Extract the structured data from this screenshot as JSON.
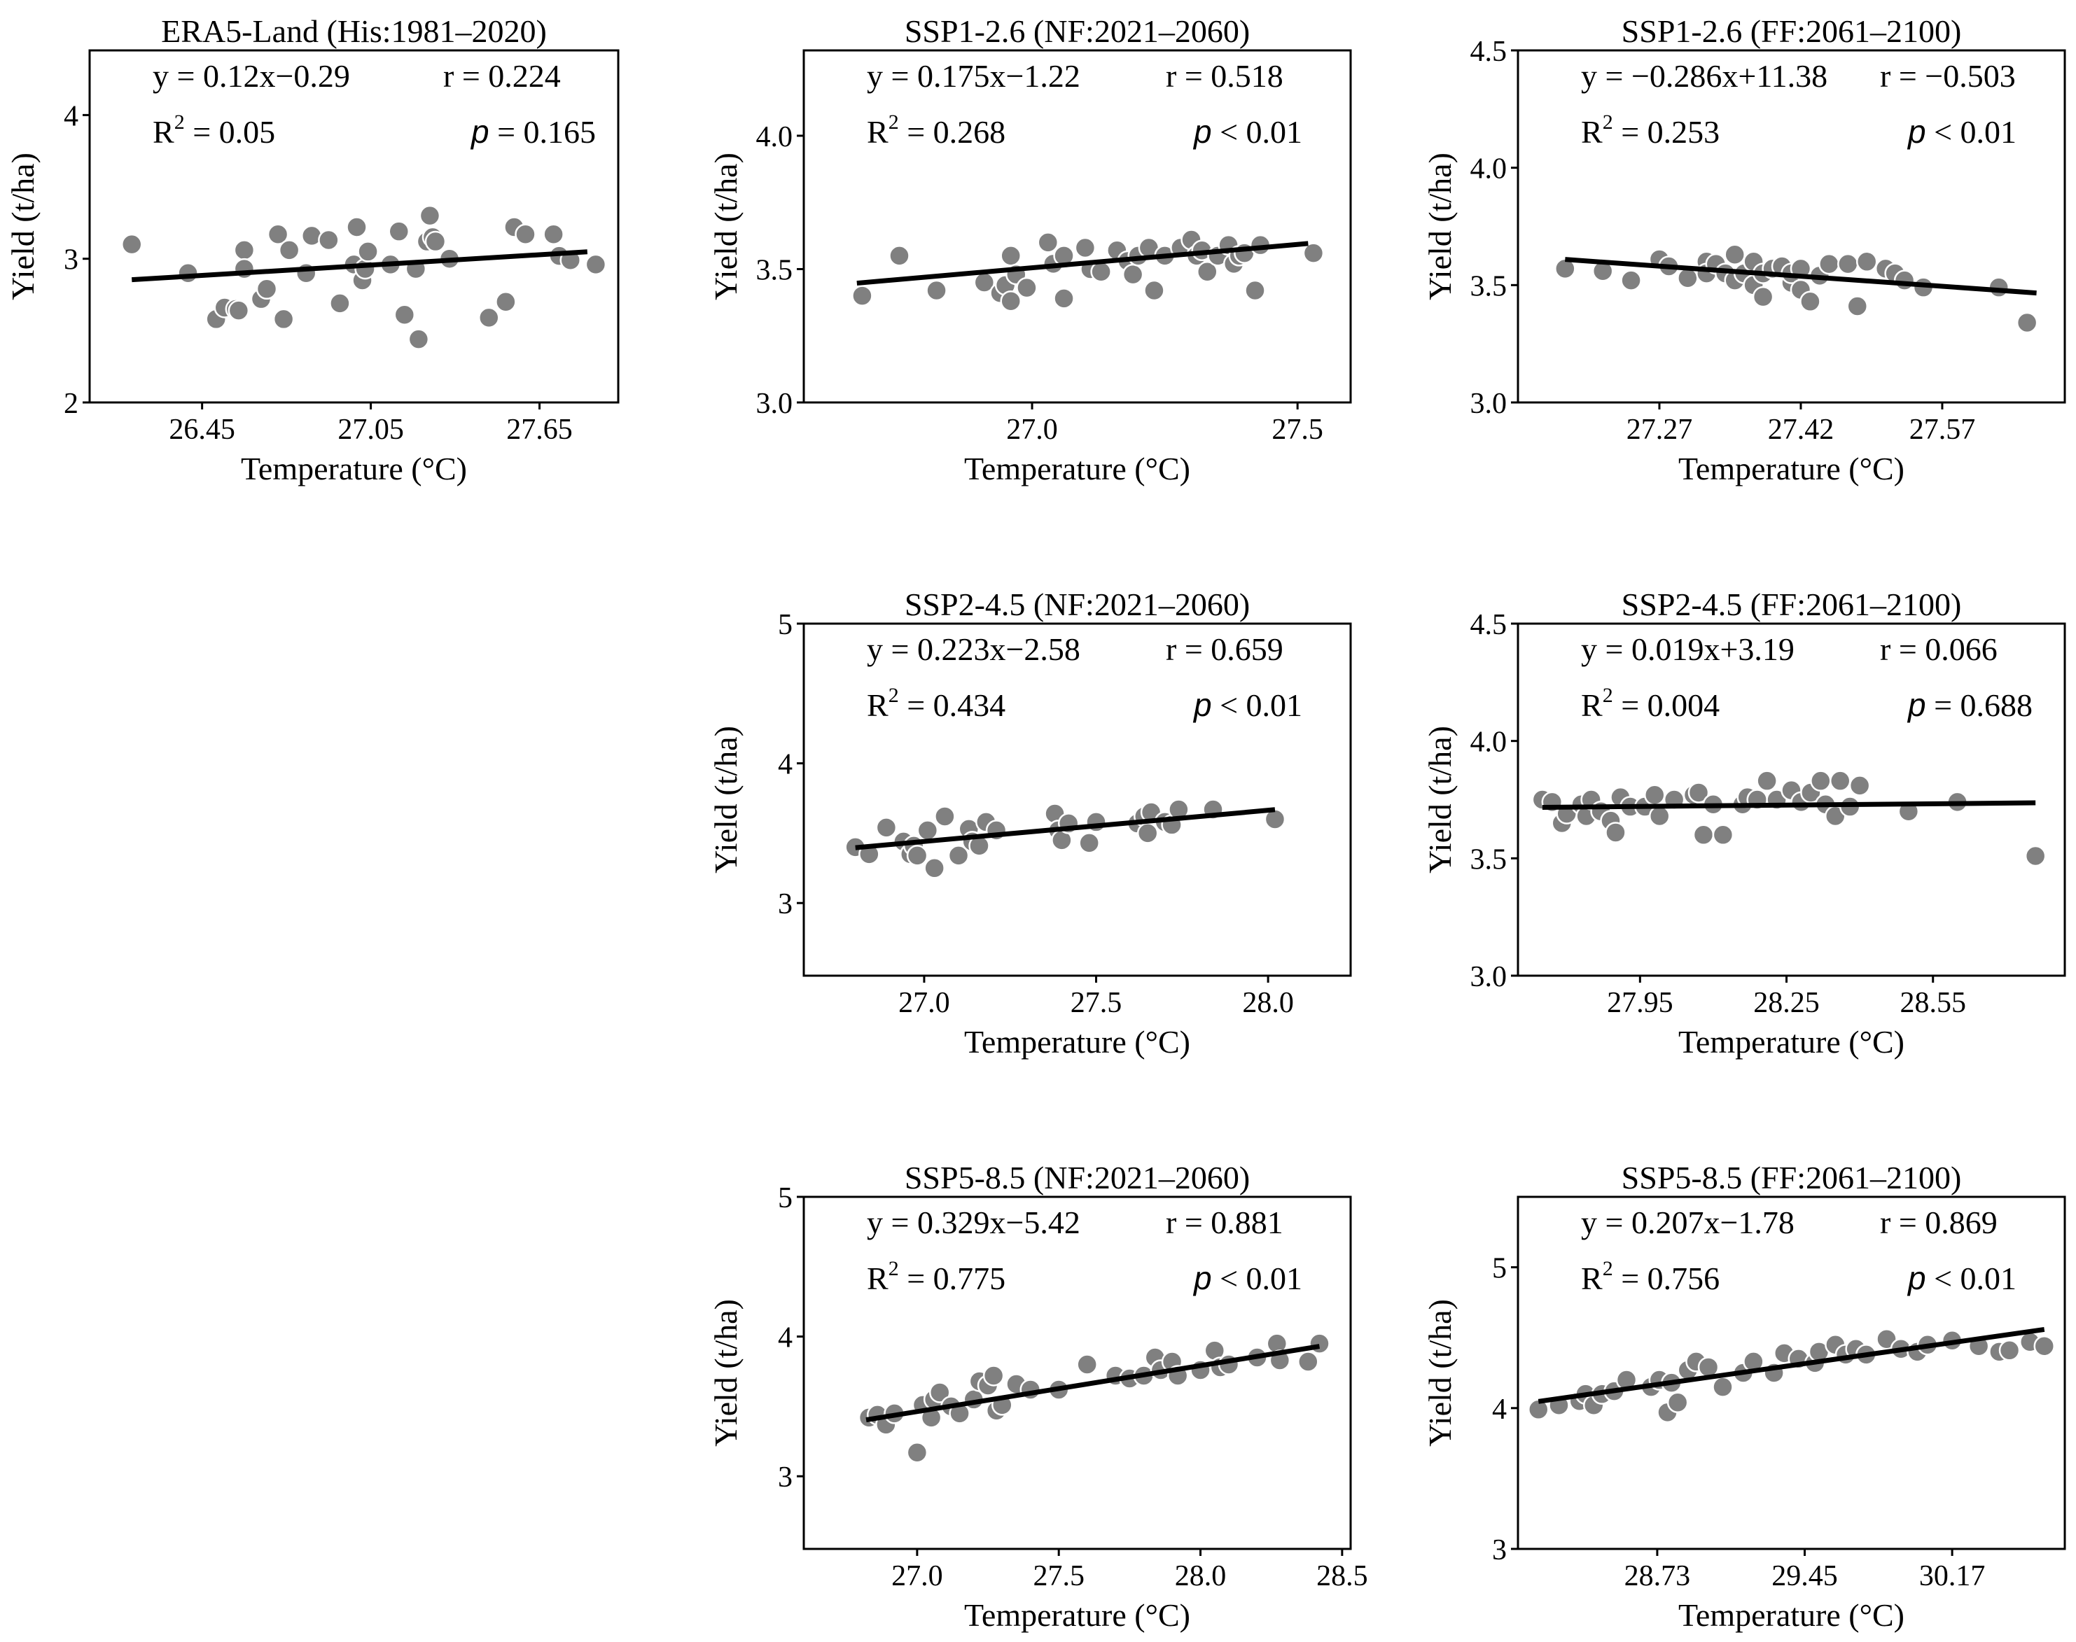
{
  "chart_data": [
    {
      "type": "scatter",
      "title": "ERA5-Land (His:1981–2020)",
      "xlabel": "Temperature (°C)",
      "ylabel": "Yield (t/ha)",
      "xlim": [
        26.05,
        27.93
      ],
      "ylim": [
        2,
        4.45
      ],
      "xticks": [
        26.45,
        27.05,
        27.65
      ],
      "xtick_labels": [
        "26.45",
        "27.05",
        "27.65"
      ],
      "yticks": [
        2,
        3,
        4
      ],
      "ytick_labels": [
        "2",
        "3",
        "4"
      ],
      "fit": {
        "slope": 0.12,
        "intercept": -0.29,
        "x_range": [
          26.2,
          27.82
        ]
      },
      "stats": {
        "eq": "y = 0.12x−0.29",
        "r": "r = 0.224",
        "r2_label": "R",
        "r2_sup": "2",
        "r2_value": " = 0.05",
        "p_sym": "p",
        "p_value": " = 0.165"
      },
      "points": {
        "x": [
          26.2,
          26.4,
          26.5,
          26.53,
          26.57,
          26.58,
          26.6,
          26.6,
          26.66,
          26.68,
          26.72,
          26.74,
          26.76,
          26.82,
          26.84,
          26.9,
          26.94,
          26.99,
          27.0,
          27.02,
          27.03,
          27.04,
          27.12,
          27.15,
          27.17,
          27.21,
          27.22,
          27.25,
          27.26,
          27.27,
          27.28,
          27.33,
          27.47,
          27.53,
          27.56,
          27.6,
          27.7,
          27.72,
          27.76,
          27.85
        ],
        "y": [
          3.1,
          2.9,
          2.58,
          2.66,
          2.65,
          2.64,
          3.06,
          2.93,
          2.72,
          2.79,
          3.17,
          2.58,
          3.06,
          2.9,
          3.16,
          3.13,
          2.69,
          2.96,
          3.22,
          2.85,
          2.93,
          3.05,
          2.96,
          3.19,
          2.61,
          2.93,
          2.44,
          3.12,
          3.3,
          3.15,
          3.12,
          3.0,
          2.59,
          2.7,
          3.22,
          3.17,
          3.17,
          3.02,
          2.99,
          2.96
        ]
      }
    },
    {
      "type": "scatter",
      "title": "SSP1-2.6 (NF:2021–2060)",
      "xlabel": "Temperature (°C)",
      "ylabel": "Yield (t/ha)",
      "xlim": [
        26.57,
        27.6
      ],
      "ylim": [
        3.0,
        4.32
      ],
      "xticks": [
        27.0,
        27.5
      ],
      "xtick_labels": [
        "27.0",
        "27.5"
      ],
      "yticks": [
        3.0,
        3.5,
        4.0
      ],
      "ytick_labels": [
        "3.0",
        "3.5",
        "4.0"
      ],
      "fit": {
        "slope": 0.175,
        "intercept": -1.22,
        "x_range": [
          26.67,
          27.52
        ]
      },
      "stats": {
        "eq": "y = 0.175x−1.22",
        "r": "r = 0.518",
        "r2_label": "R",
        "r2_sup": "2",
        "r2_value": " = 0.268",
        "p_sym": "p",
        "p_value": " < 0.01"
      },
      "points": {
        "x": [
          26.68,
          26.75,
          26.82,
          26.91,
          26.94,
          26.95,
          26.96,
          26.96,
          26.97,
          26.99,
          27.03,
          27.04,
          27.06,
          27.06,
          27.1,
          27.11,
          27.13,
          27.16,
          27.18,
          27.19,
          27.2,
          27.22,
          27.23,
          27.25,
          27.28,
          27.3,
          27.31,
          27.32,
          27.33,
          27.35,
          27.37,
          27.38,
          27.39,
          27.4,
          27.42,
          27.43,
          27.53
        ],
        "y": [
          3.4,
          3.55,
          3.42,
          3.45,
          3.41,
          3.44,
          3.55,
          3.38,
          3.48,
          3.43,
          3.6,
          3.52,
          3.55,
          3.39,
          3.58,
          3.5,
          3.49,
          3.57,
          3.53,
          3.48,
          3.55,
          3.58,
          3.42,
          3.55,
          3.58,
          3.61,
          3.55,
          3.57,
          3.49,
          3.55,
          3.59,
          3.52,
          3.55,
          3.56,
          3.42,
          3.59,
          3.56
        ]
      }
    },
    {
      "type": "scatter",
      "title": "SSP1-2.6 (FF:2061–2100)",
      "xlabel": "Temperature (°C)",
      "ylabel": "Yield (t/ha)",
      "xlim": [
        27.12,
        27.7
      ],
      "ylim": [
        3.0,
        4.5
      ],
      "xticks": [
        27.27,
        27.42,
        27.57
      ],
      "xtick_labels": [
        "27.27",
        "27.42",
        "27.57"
      ],
      "yticks": [
        3.0,
        3.5,
        4.0,
        4.5
      ],
      "ytick_labels": [
        "3.0",
        "3.5",
        "4.0",
        "4.5"
      ],
      "fit": {
        "slope": -0.286,
        "intercept": 11.38,
        "x_range": [
          27.17,
          27.67
        ]
      },
      "stats": {
        "eq": "y = −0.286x+11.38",
        "r": "r = −0.503",
        "r2_label": "R",
        "r2_sup": "2",
        "r2_value": " = 0.253",
        "p_sym": "p",
        "p_value": " < 0.01"
      },
      "points": {
        "x": [
          27.17,
          27.21,
          27.24,
          27.27,
          27.28,
          27.3,
          27.32,
          27.32,
          27.33,
          27.34,
          27.35,
          27.35,
          27.36,
          27.37,
          27.37,
          27.38,
          27.38,
          27.39,
          27.4,
          27.41,
          27.41,
          27.42,
          27.42,
          27.43,
          27.44,
          27.45,
          27.47,
          27.48,
          27.49,
          27.51,
          27.52,
          27.53,
          27.55,
          27.63,
          27.66
        ],
        "y": [
          3.57,
          3.56,
          3.52,
          3.61,
          3.58,
          3.53,
          3.6,
          3.55,
          3.59,
          3.55,
          3.63,
          3.52,
          3.55,
          3.5,
          3.6,
          3.45,
          3.55,
          3.57,
          3.58,
          3.51,
          3.55,
          3.57,
          3.48,
          3.43,
          3.54,
          3.59,
          3.59,
          3.41,
          3.6,
          3.57,
          3.55,
          3.52,
          3.49,
          3.49,
          3.34
        ]
      }
    },
    {
      "type": "scatter",
      "title": "SSP2-4.5 (NF:2021–2060)",
      "xlabel": "Temperature (°C)",
      "ylabel": "Yield (t/ha)",
      "xlim": [
        26.65,
        28.24
      ],
      "ylim": [
        2.48,
        5.0
      ],
      "xticks": [
        27.0,
        27.5,
        28.0
      ],
      "xtick_labels": [
        "27.0",
        "27.5",
        "28.0"
      ],
      "yticks": [
        3,
        4,
        5
      ],
      "ytick_labels": [
        "3",
        "4",
        "5"
      ],
      "fit": {
        "slope": 0.223,
        "intercept": -2.58,
        "x_range": [
          26.8,
          28.02
        ]
      },
      "stats": {
        "eq": "y = 0.223x−2.58",
        "r": "r = 0.659",
        "r2_label": "R",
        "r2_sup": "2",
        "r2_value": " = 0.434",
        "p_sym": "p",
        "p_value": " < 0.01"
      },
      "points": {
        "x": [
          26.8,
          26.84,
          26.89,
          26.94,
          26.96,
          26.97,
          26.98,
          27.01,
          27.03,
          27.06,
          27.1,
          27.13,
          27.14,
          27.16,
          27.18,
          27.21,
          27.38,
          27.39,
          27.4,
          27.42,
          27.48,
          27.5,
          27.62,
          27.64,
          27.65,
          27.66,
          27.7,
          27.72,
          27.74,
          27.84,
          28.02
        ],
        "y": [
          3.4,
          3.35,
          3.54,
          3.44,
          3.35,
          3.41,
          3.34,
          3.52,
          3.25,
          3.62,
          3.34,
          3.53,
          3.44,
          3.41,
          3.58,
          3.52,
          3.64,
          3.52,
          3.45,
          3.57,
          3.43,
          3.58,
          3.57,
          3.62,
          3.5,
          3.65,
          3.58,
          3.56,
          3.67,
          3.67,
          3.6
        ]
      }
    },
    {
      "type": "scatter",
      "title": "SSP2-4.5 (FF:2061–2100)",
      "xlabel": "Temperature (°C)",
      "ylabel": "Yield (t/ha)",
      "xlim": [
        27.7,
        28.82
      ],
      "ylim": [
        3.0,
        4.5
      ],
      "xticks": [
        27.95,
        28.25,
        28.55
      ],
      "xtick_labels": [
        "27.95",
        "28.25",
        "28.55"
      ],
      "yticks": [
        3.0,
        3.5,
        4.0,
        4.5
      ],
      "ytick_labels": [
        "3.0",
        "3.5",
        "4.0",
        "4.5"
      ],
      "fit": {
        "slope": 0.019,
        "intercept": 3.19,
        "x_range": [
          27.75,
          28.76
        ]
      },
      "stats": {
        "eq": "y = 0.019x+3.19",
        "r": "r = 0.066",
        "r2_label": "R",
        "r2_sup": "2",
        "r2_value": " = 0.004",
        "p_sym": "p",
        "p_value": " = 0.688"
      },
      "points": {
        "x": [
          27.75,
          27.77,
          27.79,
          27.8,
          27.83,
          27.84,
          27.85,
          27.87,
          27.89,
          27.9,
          27.91,
          27.93,
          27.96,
          27.98,
          27.99,
          28.02,
          28.06,
          28.07,
          28.08,
          28.1,
          28.12,
          28.16,
          28.17,
          28.19,
          28.21,
          28.23,
          28.26,
          28.28,
          28.3,
          28.32,
          28.33,
          28.35,
          28.36,
          28.38,
          28.4,
          28.5,
          28.6,
          28.76
        ],
        "y": [
          3.75,
          3.74,
          3.65,
          3.69,
          3.73,
          3.68,
          3.75,
          3.7,
          3.66,
          3.61,
          3.76,
          3.72,
          3.72,
          3.77,
          3.68,
          3.75,
          3.77,
          3.78,
          3.6,
          3.73,
          3.6,
          3.73,
          3.76,
          3.75,
          3.83,
          3.75,
          3.79,
          3.74,
          3.78,
          3.83,
          3.73,
          3.68,
          3.83,
          3.72,
          3.81,
          3.7,
          3.74,
          3.51
        ]
      }
    },
    {
      "type": "scatter",
      "title": "SSP5-8.5 (NF:2021–2060)",
      "xlabel": "Temperature (°C)",
      "ylabel": "Yield (t/ha)",
      "xlim": [
        26.6,
        28.53
      ],
      "ylim": [
        2.48,
        5.0
      ],
      "xticks": [
        27.0,
        27.5,
        28.0,
        28.5
      ],
      "xtick_labels": [
        "27.0",
        "27.5",
        "28.0",
        "28.5"
      ],
      "yticks": [
        3,
        4,
        5
      ],
      "ytick_labels": [
        "3",
        "4",
        "5"
      ],
      "fit": {
        "slope": 0.329,
        "intercept": -5.42,
        "x_range": [
          26.82,
          28.42
        ]
      },
      "stats": {
        "eq": "y = 0.329x−5.42",
        "r": "r = 0.881",
        "r2_label": "R",
        "r2_sup": "2",
        "r2_value": " = 0.775",
        "p_sym": "p",
        "p_value": " < 0.01"
      },
      "points": {
        "x": [
          26.83,
          26.86,
          26.89,
          26.92,
          27.0,
          27.02,
          27.05,
          27.06,
          27.08,
          27.12,
          27.15,
          27.2,
          27.22,
          27.25,
          27.27,
          27.28,
          27.3,
          27.35,
          27.4,
          27.5,
          27.6,
          27.7,
          27.75,
          27.8,
          27.84,
          27.86,
          27.9,
          27.92,
          28.0,
          28.05,
          28.07,
          28.1,
          28.2,
          28.27,
          28.28,
          28.38,
          28.42
        ],
        "y": [
          3.42,
          3.44,
          3.37,
          3.45,
          3.17,
          3.51,
          3.42,
          3.55,
          3.6,
          3.5,
          3.45,
          3.55,
          3.68,
          3.65,
          3.72,
          3.47,
          3.51,
          3.66,
          3.62,
          3.62,
          3.8,
          3.72,
          3.7,
          3.72,
          3.85,
          3.76,
          3.82,
          3.72,
          3.76,
          3.9,
          3.78,
          3.8,
          3.85,
          3.95,
          3.83,
          3.82,
          3.95
        ]
      }
    },
    {
      "type": "scatter",
      "title": "SSP5-8.5 (FF:2061–2100)",
      "xlabel": "Temperature (°C)",
      "ylabel": "Yield (t/ha)",
      "xlim": [
        28.05,
        30.72
      ],
      "ylim": [
        3.0,
        5.5
      ],
      "xticks": [
        28.73,
        29.45,
        30.17
      ],
      "xtick_labels": [
        "28.73",
        "29.45",
        "30.17"
      ],
      "yticks": [
        3,
        4,
        5
      ],
      "ytick_labels": [
        "3",
        "4",
        "5"
      ],
      "fit": {
        "slope": 0.207,
        "intercept": -1.78,
        "x_range": [
          28.15,
          30.62
        ]
      },
      "stats": {
        "eq": "y = 0.207x−1.78",
        "r": "r = 0.869",
        "r2_label": "R",
        "r2_sup": "2",
        "r2_value": " = 0.756",
        "p_sym": "p",
        "p_value": " < 0.01"
      },
      "points": {
        "x": [
          28.15,
          28.25,
          28.35,
          28.38,
          28.42,
          28.46,
          28.52,
          28.58,
          28.7,
          28.74,
          28.78,
          28.8,
          28.83,
          28.88,
          28.92,
          28.98,
          29.05,
          29.15,
          29.2,
          29.3,
          29.35,
          29.42,
          29.5,
          29.52,
          29.6,
          29.65,
          29.7,
          29.75,
          29.85,
          29.92,
          30.0,
          30.05,
          30.17,
          30.3,
          30.4,
          30.45,
          30.55,
          30.62
        ],
        "y": [
          3.99,
          4.02,
          4.05,
          4.1,
          4.02,
          4.1,
          4.12,
          4.2,
          4.15,
          4.2,
          3.97,
          4.18,
          4.04,
          4.27,
          4.33,
          4.29,
          4.15,
          4.25,
          4.33,
          4.25,
          4.39,
          4.35,
          4.32,
          4.4,
          4.45,
          4.38,
          4.42,
          4.38,
          4.49,
          4.42,
          4.4,
          4.45,
          4.48,
          4.44,
          4.4,
          4.41,
          4.47,
          4.44
        ]
      }
    }
  ]
}
